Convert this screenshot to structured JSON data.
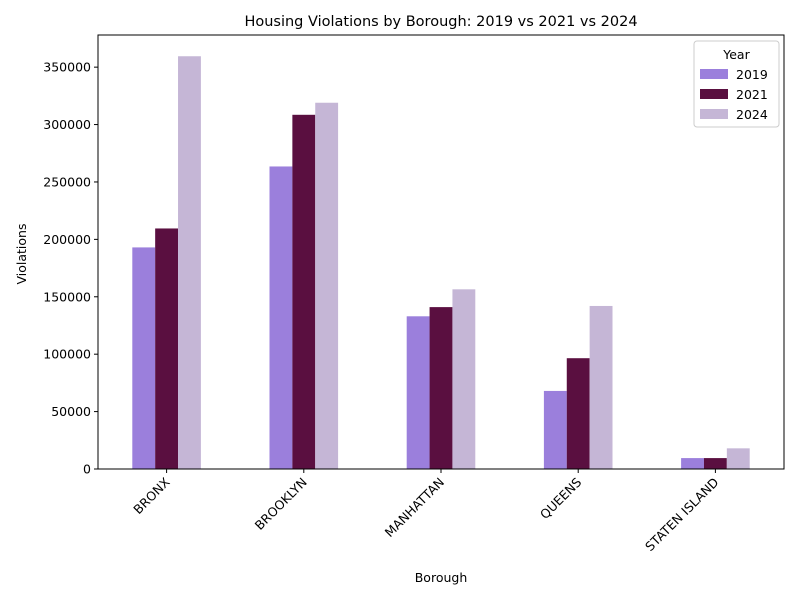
{
  "chart_data": {
    "type": "bar",
    "title": "Housing Violations by Borough: 2019 vs 2021 vs 2024",
    "xlabel": "Borough",
    "ylabel": "Violations",
    "categories": [
      "BRONX",
      "BROOKLYN",
      "MANHATTAN",
      "QUEENS",
      "STATEN ISLAND"
    ],
    "series": [
      {
        "name": "2019",
        "color": "#9b7fdc",
        "values": [
          193000,
          263500,
          133000,
          68000,
          9500
        ]
      },
      {
        "name": "2021",
        "color": "#5a0f40",
        "values": [
          209500,
          308500,
          141000,
          96500,
          9500
        ]
      },
      {
        "name": "2024",
        "color": "#c5b6d6",
        "values": [
          359500,
          319000,
          156500,
          142000,
          18000
        ]
      }
    ],
    "ylim": [
      0,
      378000
    ],
    "yticks": [
      0,
      50000,
      100000,
      150000,
      200000,
      250000,
      300000,
      350000
    ],
    "ytick_labels": [
      "0",
      "50000",
      "100000",
      "150000",
      "200000",
      "250000",
      "300000",
      "350000"
    ],
    "legend": {
      "title": "Year",
      "placement": "top-right"
    },
    "grid": false,
    "xtick_rotation": 45
  }
}
